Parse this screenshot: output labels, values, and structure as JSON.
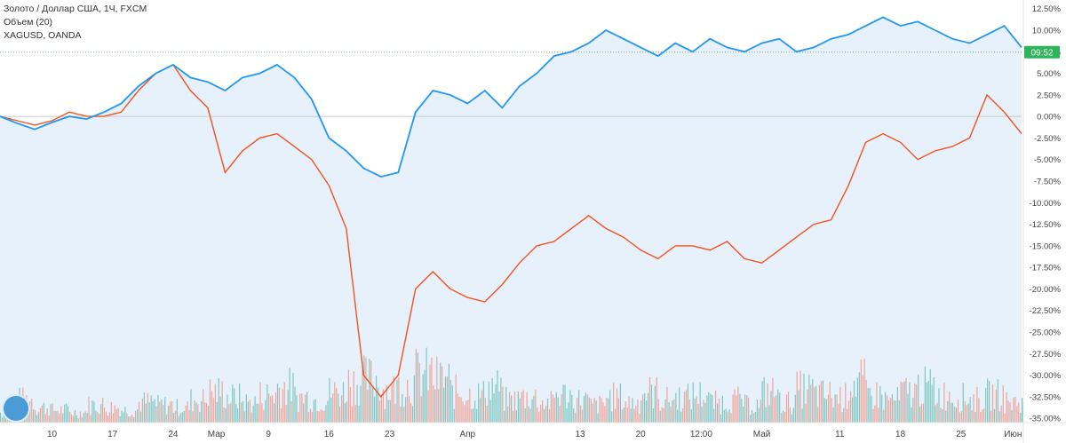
{
  "legend": {
    "line1": "Золото / Доллар США, 1Ч, FXCM",
    "line2": "Объем (20)",
    "line3": "XAGUSD, OANDA"
  },
  "price_tag": {
    "value": "09:52",
    "y": 7.45,
    "color": "#2fb45a"
  },
  "icons": {
    "logo": "tradingview-logo-icon"
  },
  "colors": {
    "gold": "#2196f3",
    "silver": "#f4511e",
    "volume_up": "#80c7c0",
    "volume_down": "#f2a49a",
    "area": "#e6f1fb"
  },
  "chart_data": {
    "type": "line",
    "xlabel": "",
    "ylabel": "",
    "ylim": [
      -35.5,
      13.5
    ],
    "grid": false,
    "y_ticks": [
      "12.50%",
      "10.00%",
      "7.50%",
      "5.00%",
      "2.50%",
      "0.00%",
      "-2.50%",
      "-5.00%",
      "-7.50%",
      "-10.00%",
      "-12.50%",
      "-15.00%",
      "-17.50%",
      "-20.00%",
      "-22.50%",
      "-25.00%",
      "-27.50%",
      "-30.00%",
      "-32.50%",
      "-35.00%"
    ],
    "x_ticks": [
      {
        "label": "10",
        "x": 1
      },
      {
        "label": "17",
        "x": 4.5
      },
      {
        "label": "24",
        "x": 8
      },
      {
        "label": "Мар",
        "x": 10.5
      },
      {
        "label": "9",
        "x": 13.5
      },
      {
        "label": "16",
        "x": 17
      },
      {
        "label": "23",
        "x": 20.5
      },
      {
        "label": "Апр",
        "x": 25
      },
      {
        "label": "13",
        "x": 31.5
      },
      {
        "label": "20",
        "x": 35
      },
      {
        "label": "12:00",
        "x": 38.5
      },
      {
        "label": "Май",
        "x": 42
      },
      {
        "label": "11",
        "x": 46.5
      },
      {
        "label": "18",
        "x": 50
      },
      {
        "label": "25",
        "x": 53.5
      },
      {
        "label": "Июн",
        "x": 56.5
      }
    ],
    "x": [
      -2,
      -1,
      0,
      1,
      2,
      3,
      4,
      5,
      6,
      7,
      8,
      9,
      10,
      11,
      12,
      13,
      14,
      15,
      16,
      17,
      18,
      19,
      20,
      21,
      22,
      23,
      24,
      25,
      26,
      27,
      28,
      29,
      30,
      31,
      32,
      33,
      34,
      35,
      36,
      37,
      38,
      39,
      40,
      41,
      42,
      43,
      44,
      45,
      46,
      47,
      48,
      49,
      50,
      51,
      52,
      53,
      54,
      55,
      56,
      57
    ],
    "series": [
      {
        "name": "Золото / Доллар США",
        "values": [
          0.0,
          -0.8,
          -1.5,
          -0.7,
          0.0,
          -0.3,
          0.5,
          1.5,
          3.5,
          5.0,
          6.0,
          4.5,
          4.0,
          3.0,
          4.5,
          5.0,
          6.0,
          4.5,
          2.0,
          -2.5,
          -4.0,
          -6.0,
          -7.0,
          -6.5,
          0.5,
          3.0,
          2.5,
          1.5,
          3.0,
          1.0,
          3.5,
          5.0,
          7.0,
          7.5,
          8.5,
          10.0,
          9.0,
          8.0,
          7.0,
          8.5,
          7.5,
          9.0,
          8.0,
          7.5,
          8.5,
          9.0,
          7.5,
          8.0,
          9.0,
          9.5,
          10.5,
          11.5,
          10.5,
          11.0,
          10.0,
          9.0,
          8.5,
          9.5,
          10.5,
          8.0
        ]
      },
      {
        "name": "XAGUSD",
        "values": [
          0.0,
          -0.5,
          -1.0,
          -0.5,
          0.5,
          0.0,
          0.0,
          0.5,
          3.0,
          5.0,
          6.0,
          3.0,
          1.0,
          -6.5,
          -4.0,
          -2.5,
          -2.0,
          -3.5,
          -5.0,
          -8.0,
          -13.0,
          -30.0,
          -32.5,
          -30.0,
          -20.0,
          -18.0,
          -20.0,
          -21.0,
          -21.5,
          -19.5,
          -17.0,
          -15.0,
          -14.5,
          -13.0,
          -11.5,
          -13.0,
          -14.0,
          -15.5,
          -16.5,
          -15.0,
          -15.0,
          -15.5,
          -14.5,
          -16.5,
          -17.0,
          -15.5,
          -14.0,
          -12.5,
          -12.0,
          -8.0,
          -3.0,
          -2.0,
          -3.0,
          -5.0,
          -4.0,
          -3.5,
          -2.5,
          2.5,
          0.5,
          -2.0
        ]
      }
    ],
    "volume": {
      "values": [
        0.2,
        0.45,
        0.3,
        0.25,
        0.2,
        0.35,
        0.3,
        0.25,
        0.4,
        0.35,
        0.3,
        0.45,
        0.6,
        0.5,
        0.4,
        0.55,
        0.7,
        0.5,
        0.45,
        0.6,
        0.8,
        0.85,
        0.65,
        0.75,
        0.95,
        0.85,
        0.6,
        0.55,
        0.7,
        0.45,
        0.5,
        0.4,
        0.55,
        0.45,
        0.35,
        0.5,
        0.4,
        0.6,
        0.45,
        0.5,
        0.55,
        0.4,
        0.45,
        0.35,
        0.6,
        0.4,
        0.65,
        0.55,
        0.5,
        0.8,
        0.55,
        0.45,
        0.6,
        0.7,
        0.55,
        0.5,
        0.45,
        0.55,
        0.4,
        0.35
      ],
      "max_pct_of_panel": 1
    }
  }
}
